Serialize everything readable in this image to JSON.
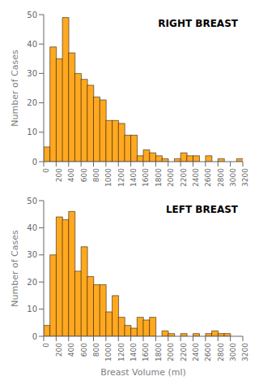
{
  "chart_data": [
    {
      "type": "histogram",
      "title": "RIGHT BREAST",
      "ylabel": "Number of Cases",
      "bins": [
        0,
        100,
        200,
        300,
        400,
        500,
        600,
        700,
        800,
        900,
        1000,
        1100,
        1200,
        1300,
        1400,
        1500,
        1600,
        1700,
        1800,
        1900,
        2000,
        2100,
        2200,
        2300,
        2400,
        2500,
        2600,
        2700,
        2800,
        2900,
        3000,
        3100,
        3200
      ],
      "values": [
        5,
        39,
        35,
        49,
        37,
        30,
        28,
        26,
        22,
        21,
        14,
        14,
        13,
        9,
        9,
        2,
        4,
        3,
        2,
        1,
        0,
        1,
        3,
        2,
        2,
        0,
        2,
        0,
        1,
        0,
        0,
        1
      ],
      "color": "#FFA820",
      "xlim": [
        0,
        3200
      ],
      "xticks": [
        0,
        200,
        400,
        600,
        800,
        1000,
        1200,
        1400,
        1600,
        1800,
        2000,
        2200,
        2400,
        2600,
        2800,
        3000,
        3200
      ],
      "ylim": [
        0,
        50
      ],
      "yticks": [
        0,
        10,
        20,
        30,
        40,
        50
      ],
      "grid": false
    },
    {
      "type": "histogram",
      "title": "LEFT BREAST",
      "xlabel": "Breast Volume (ml)",
      "ylabel": "Number of Cases",
      "bins": [
        0,
        100,
        200,
        300,
        400,
        500,
        600,
        700,
        800,
        900,
        1000,
        1100,
        1200,
        1300,
        1400,
        1500,
        1600,
        1700,
        1800,
        1900,
        2000,
        2100,
        2200,
        2300,
        2400,
        2500,
        2600,
        2700,
        2800,
        2900,
        3000,
        3100,
        3200
      ],
      "values": [
        4,
        30,
        44,
        43,
        46,
        24,
        33,
        22,
        19,
        19,
        9,
        15,
        7,
        4,
        3,
        7,
        6,
        7,
        0,
        2,
        1,
        0,
        1,
        0,
        1,
        0,
        1,
        2,
        1,
        1,
        0,
        0
      ],
      "color": "#FFA820",
      "xlim": [
        0,
        3200
      ],
      "xticks": [
        0,
        200,
        400,
        600,
        800,
        1000,
        1200,
        1400,
        1600,
        1800,
        2000,
        2200,
        2400,
        2600,
        2800,
        3000,
        3200
      ],
      "ylim": [
        0,
        50
      ],
      "yticks": [
        0,
        10,
        20,
        30,
        40,
        50
      ],
      "grid": false
    }
  ]
}
